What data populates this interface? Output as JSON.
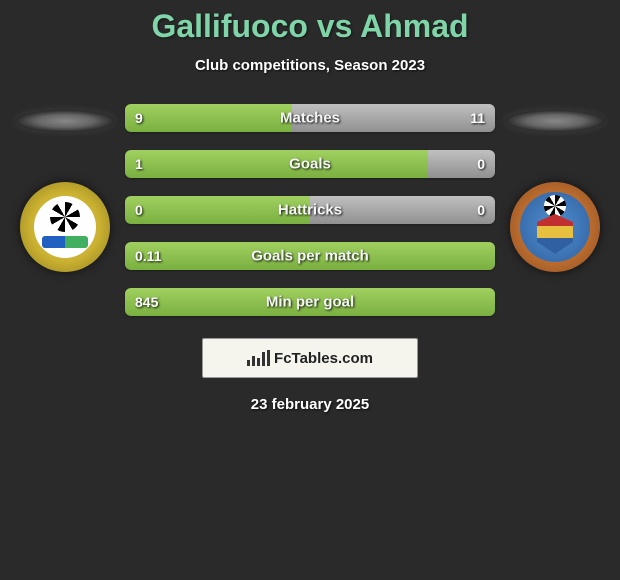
{
  "title": "Gallifuoco vs Ahmad",
  "subtitle": "Club competitions, Season 2023",
  "date": "23 february 2025",
  "footer_brand": "FcTables.com",
  "colors": {
    "title": "#7fd4a8",
    "bar_left": "#7ab040",
    "bar_right": "#909090",
    "background": "#2a2a2a"
  },
  "stats": [
    {
      "label": "Matches",
      "left_val": "9",
      "right_val": "11",
      "left_pct": 45,
      "right_pct": 55
    },
    {
      "label": "Goals",
      "left_val": "1",
      "right_val": "0",
      "left_pct": 82,
      "right_pct": 18
    },
    {
      "label": "Hattricks",
      "left_val": "0",
      "right_val": "0",
      "left_pct": 50,
      "right_pct": 50
    },
    {
      "label": "Goals per match",
      "left_val": "0.11",
      "right_val": "",
      "left_pct": 100,
      "right_pct": 0
    },
    {
      "label": "Min per goal",
      "left_val": "845",
      "right_val": "",
      "left_pct": 100,
      "right_pct": 0
    }
  ]
}
